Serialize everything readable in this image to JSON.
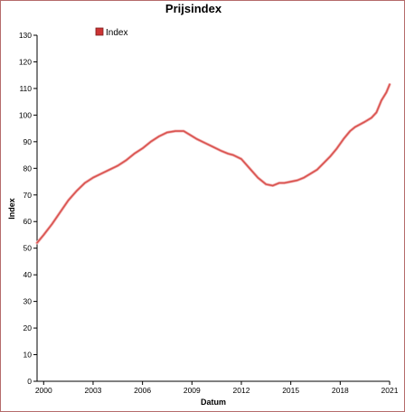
{
  "chart_data": {
    "type": "line",
    "title": "Prijsindex",
    "xlabel": "Datum",
    "ylabel": "Index",
    "legend": {
      "entries": [
        "Index"
      ],
      "placement": "top-left"
    },
    "xlim": [
      1999.6,
      2021.0
    ],
    "ylim": [
      0,
      130
    ],
    "x_ticks": [
      2000,
      2003,
      2006,
      2009,
      2012,
      2015,
      2018,
      2021
    ],
    "y_ticks": [
      0,
      10,
      20,
      30,
      40,
      50,
      60,
      70,
      80,
      90,
      100,
      110,
      120,
      130
    ],
    "grid": false,
    "line_color": "#d9534f",
    "legend_swatch_color": "#cc3333",
    "series": [
      {
        "name": "Index",
        "x": [
          1999.6,
          2000.0,
          2000.5,
          2001.0,
          2001.5,
          2002.0,
          2002.5,
          2003.0,
          2003.5,
          2004.0,
          2004.5,
          2005.0,
          2005.5,
          2006.0,
          2006.5,
          2007.0,
          2007.5,
          2008.0,
          2008.5,
          2008.9,
          2009.3,
          2009.8,
          2010.3,
          2010.8,
          2011.2,
          2011.5,
          2012.0,
          2012.5,
          2013.0,
          2013.5,
          2013.9,
          2014.3,
          2014.6,
          2015.0,
          2015.4,
          2015.8,
          2016.2,
          2016.6,
          2017.0,
          2017.4,
          2017.8,
          2018.2,
          2018.6,
          2018.9,
          2019.2,
          2019.5,
          2019.9,
          2020.2,
          2020.5,
          2020.8,
          2021.0
        ],
        "y": [
          52,
          55,
          59,
          63.5,
          68,
          71.5,
          74.5,
          76.5,
          78,
          79.5,
          81,
          83,
          85.5,
          87.5,
          90,
          92,
          93.5,
          94,
          94,
          92.5,
          91,
          89.5,
          88,
          86.5,
          85.5,
          85,
          83.5,
          80,
          76.5,
          74,
          73.5,
          74.5,
          74.5,
          75,
          75.5,
          76.5,
          78,
          79.5,
          82,
          84.5,
          87.5,
          91,
          94,
          95.5,
          96.5,
          97.5,
          99,
          101,
          105.5,
          108.5,
          111.5
        ]
      }
    ]
  }
}
